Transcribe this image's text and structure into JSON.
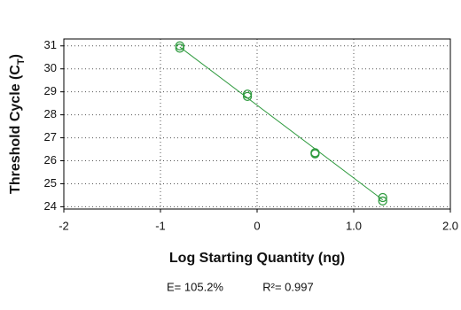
{
  "chart_data": {
    "type": "scatter",
    "x_label": "Log Starting Quantity (ng)",
    "y_label_parts": [
      "Threshold Cycle (C",
      "T",
      ")"
    ],
    "annotations": [
      "E= 105.2%",
      "R²= 0.997"
    ],
    "x": [
      -0.8,
      -0.8,
      -0.1,
      -0.1,
      0.6,
      0.6,
      1.3,
      1.3
    ],
    "values": [
      31.0,
      30.9,
      28.9,
      28.8,
      26.35,
      26.3,
      24.4,
      24.25
    ],
    "color": "#2e9a3e",
    "fit_line": {
      "x": [
        -0.8,
        1.3
      ],
      "values": [
        30.95,
        24.3
      ],
      "color": "#2e9a3e"
    },
    "xlim": [
      -2,
      2
    ],
    "xticks": [
      -2,
      -1,
      0,
      {
        "value": 1,
        "label": "1.0"
      },
      {
        "value": 2,
        "label": "2.0"
      }
    ],
    "ylim": [
      23.9,
      31.3
    ],
    "yticks": [
      24,
      25,
      26,
      27,
      28,
      29,
      30,
      31
    ],
    "grid": true
  }
}
